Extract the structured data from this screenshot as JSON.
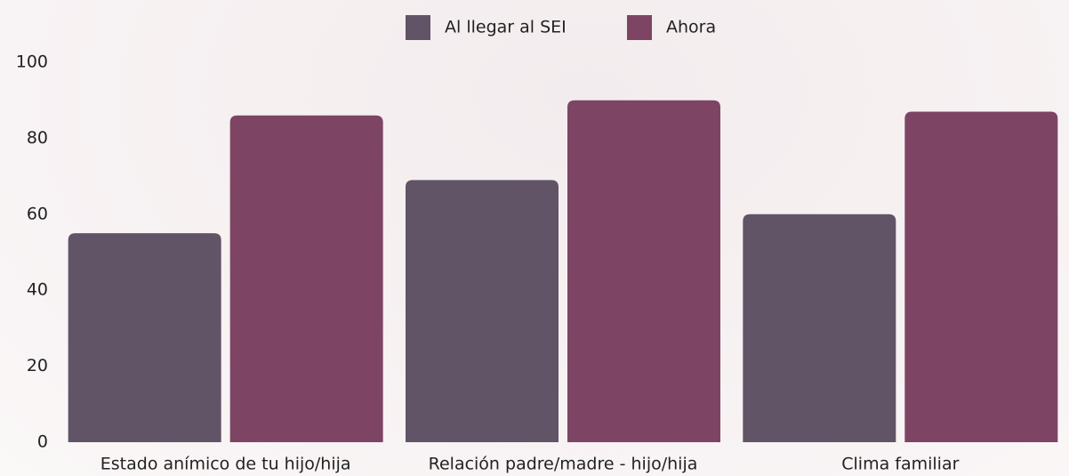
{
  "chart_data": {
    "type": "bar",
    "categories": [
      "Estado anímico de tu hijo/hija",
      "Relación padre/madre - hijo/hija",
      "Clima familiar"
    ],
    "series": [
      {
        "name": "Al llegar al SEI",
        "color": "#615467",
        "values": [
          55,
          69,
          60
        ]
      },
      {
        "name": "Ahora",
        "color": "#7d4563",
        "values": [
          86,
          90,
          87
        ]
      }
    ],
    "ylim": [
      0,
      100
    ],
    "yticks": [
      0,
      20,
      40,
      60,
      80,
      100
    ],
    "grid": false
  }
}
